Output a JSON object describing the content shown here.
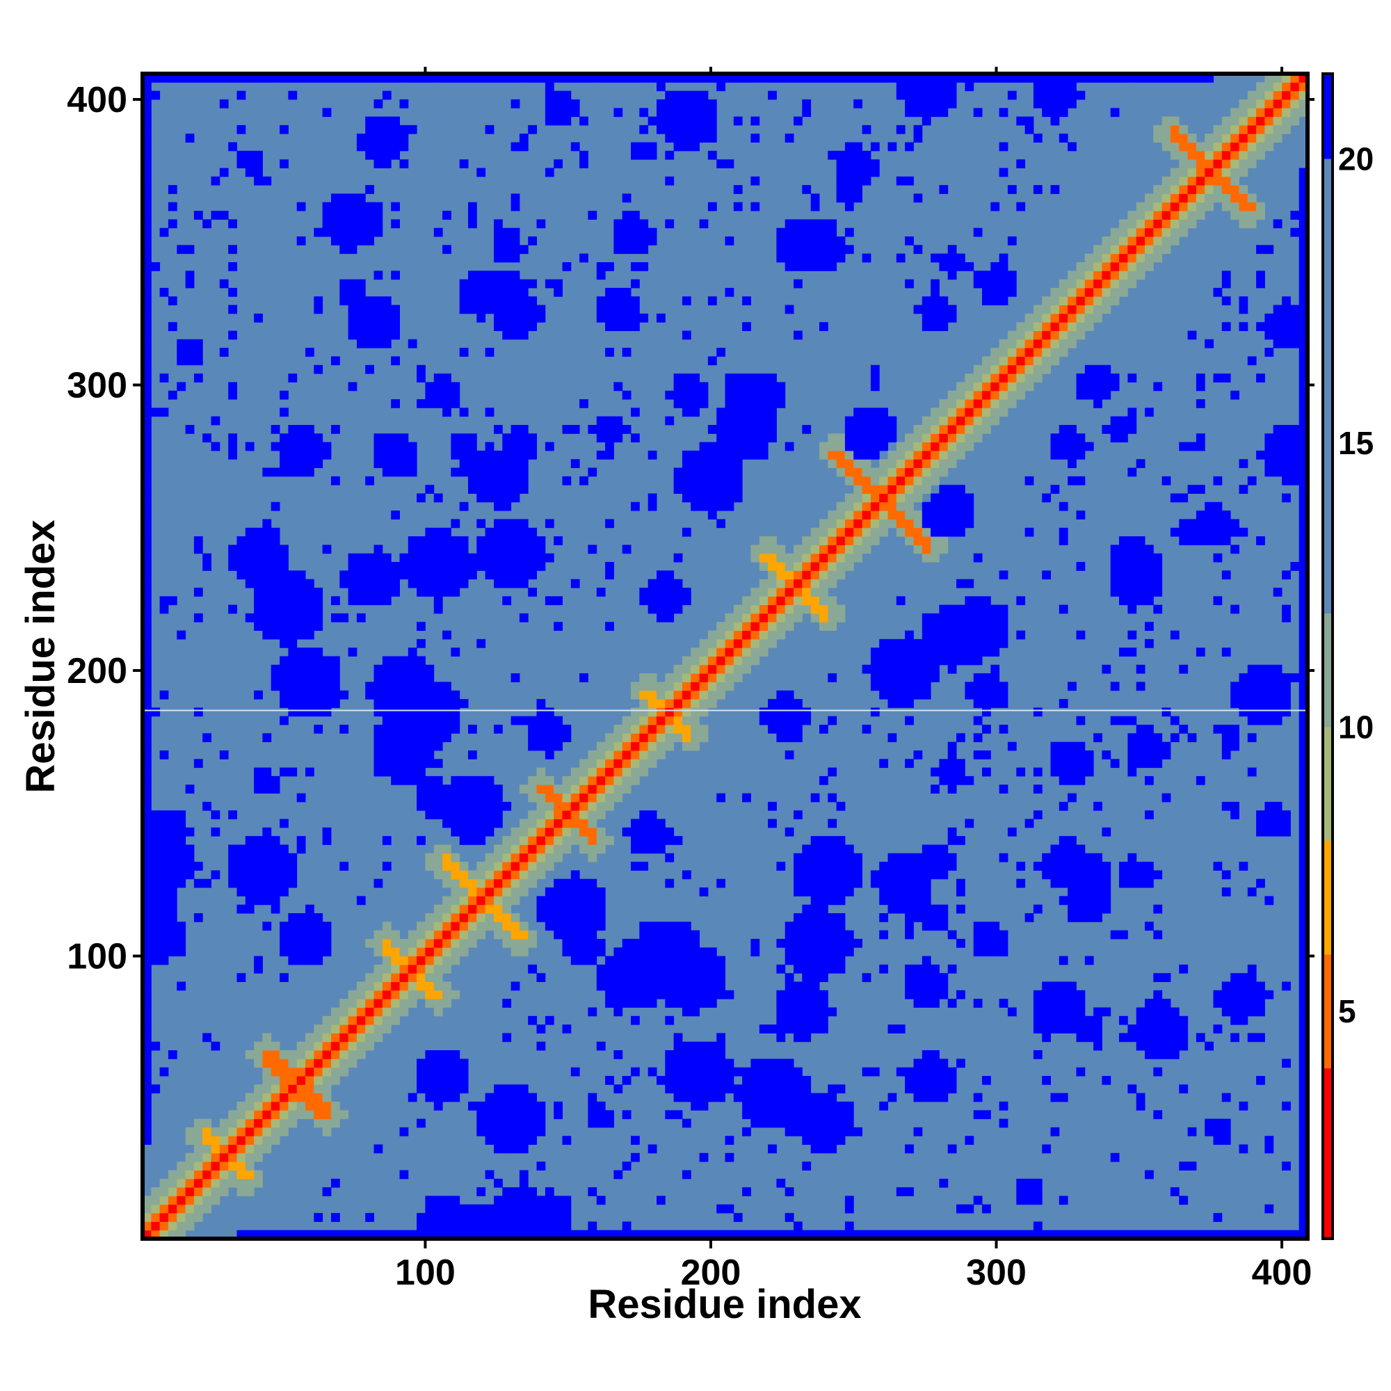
{
  "chart_data": {
    "type": "heatmap",
    "xlabel": "Residue index",
    "ylabel": "Residue index",
    "n_residues": 409,
    "xlim": [
      1,
      409
    ],
    "ylim": [
      1,
      409
    ],
    "x_ticks": [
      100,
      200,
      300,
      400
    ],
    "y_ticks": [
      100,
      200,
      300,
      400
    ],
    "colorbar": {
      "ticks": [
        5,
        10,
        15,
        20
      ],
      "range": [
        1,
        21.5
      ],
      "colors": [
        {
          "from": 1,
          "to": 4,
          "color": "#ff0000"
        },
        {
          "from": 4,
          "to": 6,
          "color": "#ff6a00"
        },
        {
          "from": 6,
          "to": 8,
          "color": "#ffa500"
        },
        {
          "from": 8,
          "to": 10,
          "color": "#a8b878"
        },
        {
          "from": 10,
          "to": 12,
          "color": "#8aa896"
        },
        {
          "from": 12,
          "to": 20,
          "color": "#5a88b8"
        },
        {
          "from": 20,
          "to": 21.5,
          "color": "#0000ff"
        }
      ]
    },
    "gap_row_residue": 186,
    "diagonal_distance": 1,
    "features": [
      {
        "kind": "diagonal",
        "desc": "close contacts along main diagonal",
        "value": 3.8
      },
      {
        "kind": "anti_diag",
        "center": [
          120,
          120
        ],
        "half": 14,
        "value": 6
      },
      {
        "kind": "anti_diag",
        "center": [
          150,
          150
        ],
        "half": 10,
        "value": 5
      },
      {
        "kind": "anti_diag",
        "center": [
          185,
          185
        ],
        "half": 8,
        "value": 6
      },
      {
        "kind": "anti_diag",
        "center": [
          260,
          260
        ],
        "half": 18,
        "value": 5
      },
      {
        "kind": "anti_diag",
        "center": [
          55,
          55
        ],
        "half": 12,
        "value": 5
      },
      {
        "kind": "anti_diag",
        "center": [
          30,
          30
        ],
        "half": 8,
        "value": 6
      },
      {
        "kind": "anti_diag",
        "center": [
          375,
          375
        ],
        "half": 14,
        "value": 5
      },
      {
        "kind": "anti_diag",
        "center": [
          230,
          230
        ],
        "half": 12,
        "value": 6
      },
      {
        "kind": "anti_diag",
        "center": [
          95,
          95
        ],
        "half": 10,
        "value": 6
      }
    ]
  }
}
